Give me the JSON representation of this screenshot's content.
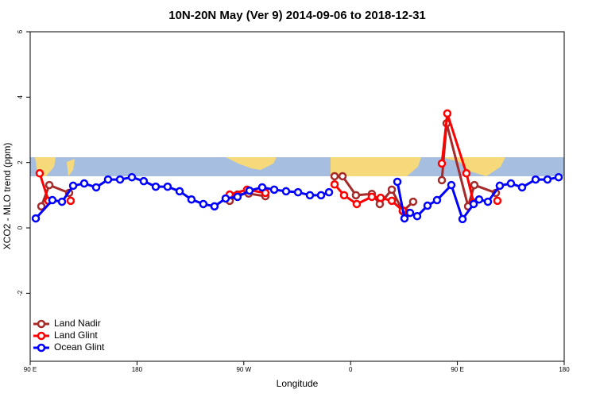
{
  "chart_data": {
    "type": "line",
    "title": "10N-20N May (Ver 9)   2014-09-06 to 2018-12-31",
    "x_label": "Longitude",
    "y_label": "XCO2 - MLO trend (ppm)",
    "xlim": [
      90,
      540
    ],
    "ylim": [
      -4.08,
      6
    ],
    "xticks": [
      {
        "value": 90,
        "label": "90 E"
      },
      180,
      {
        "value": 270,
        "label": "90 W"
      },
      {
        "value": 360,
        "label": "0"
      },
      {
        "value": 450,
        "label": "90 E"
      },
      180
    ],
    "yticks": [
      -2,
      0,
      2,
      4,
      6
    ],
    "legend": "bottom-left",
    "series": [
      {
        "name": "Land Nadir",
        "color": "#a52a2a",
        "x": [
          99.4,
          106.1,
          122.8,
          null,
          258.1,
          264.7,
          274.1,
          288.2,
          null,
          346.5,
          353.2,
          364.5,
          377.9,
          384.6,
          394.7,
          404.0,
          412.7,
          null,
          436.9,
          440.9,
          459.0,
          464.3,
          482.4
        ],
        "values": [
          0.66,
          1.31,
          1.07,
          null,
          0.83,
          1.02,
          1.05,
          0.97,
          null,
          1.58,
          1.58,
          1.0,
          1.04,
          0.73,
          1.17,
          0.51,
          0.8,
          null,
          1.46,
          3.2,
          0.66,
          1.31,
          1.07
        ]
      },
      {
        "name": "Land Glint",
        "color": "#ff0000",
        "x": [
          98.0,
          105.4,
          null,
          124.1,
          null,
          258.1,
          272.8,
          288.2,
          null,
          346.5,
          354.5,
          365.2,
          377.9,
          385.3,
          394.7,
          404.0,
          408.7,
          null,
          436.9,
          441.5,
          457.6,
          463.6,
          null,
          483.7
        ],
        "values": [
          1.67,
          0.83,
          null,
          0.83,
          null,
          1.02,
          1.17,
          1.07,
          null,
          1.33,
          1.0,
          0.73,
          0.95,
          0.92,
          0.83,
          0.53,
          0.46,
          null,
          1.97,
          3.5,
          1.67,
          0.78,
          null,
          0.83
        ]
      },
      {
        "name": "Ocean Glint",
        "color": "#0000ff",
        "x": [
          94.7,
          108.7,
          116.8,
          126.2,
          135.5,
          145.6,
          155.6,
          165.7,
          175.7,
          185.7,
          195.8,
          205.8,
          215.9,
          225.9,
          235.9,
          245.3,
          254.7,
          264.7,
          274.8,
          285.5,
          295.6,
          305.6,
          315.7,
          325.7,
          335.1,
          341.8,
          null,
          399.4,
          405.4,
          410.1,
          416.1,
          424.8,
          432.8,
          444.9,
          454.3,
          463.7,
          468.3,
          475.7,
          485.7,
          495.1,
          504.5,
          515.9,
          525.9,
          535.3
        ],
        "values": [
          0.29,
          0.85,
          0.8,
          1.29,
          1.36,
          1.24,
          1.48,
          1.48,
          1.55,
          1.43,
          1.26,
          1.26,
          1.12,
          0.87,
          0.73,
          0.66,
          0.9,
          0.95,
          1.14,
          1.24,
          1.17,
          1.12,
          1.09,
          1.0,
          1.0,
          1.09,
          null,
          1.41,
          0.29,
          0.46,
          0.36,
          0.68,
          0.85,
          1.31,
          0.27,
          0.73,
          0.87,
          0.8,
          1.29,
          1.36,
          1.24,
          1.48,
          1.48,
          1.55
        ]
      }
    ]
  }
}
